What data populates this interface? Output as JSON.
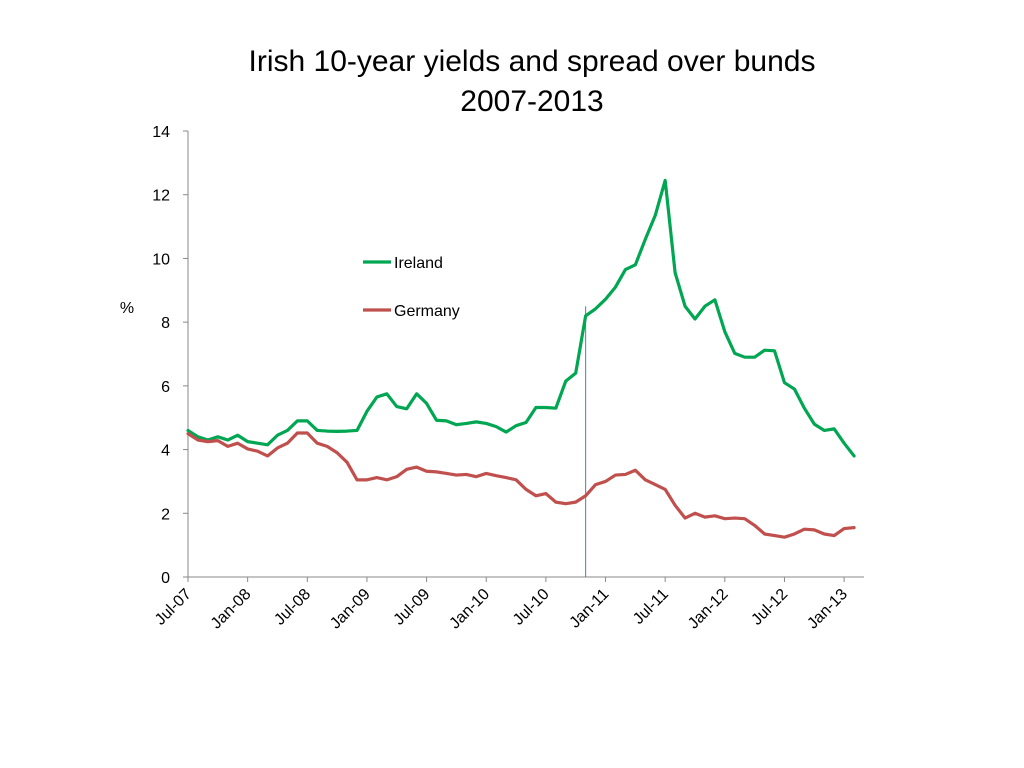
{
  "chart_data": {
    "type": "line",
    "title": "Irish 10-year yields and spread over bunds",
    "subtitle": "2007-2013",
    "ylabel": "%",
    "xlabel": "",
    "ylim": [
      0,
      14
    ],
    "y_ticks": [
      0,
      2,
      4,
      6,
      8,
      10,
      12,
      14
    ],
    "x_ticks": [
      "Jul-07",
      "Jan-08",
      "Jul-08",
      "Jan-09",
      "Jul-09",
      "Jan-10",
      "Jul-10",
      "Jan-11",
      "Jul-11",
      "Jan-12",
      "Jul-12",
      "Jan-13"
    ],
    "x_start": "Jul-07",
    "x_end": "Mar-13",
    "legend_position": "upper-middle",
    "grid": false,
    "marker_line": {
      "x": "Nov-10",
      "y_from": 0,
      "y_to": 8.5,
      "color": "#4a7ebb"
    },
    "series": [
      {
        "name": "Ireland",
        "color": "#00a651",
        "values": [
          4.6,
          4.4,
          4.3,
          4.4,
          4.3,
          4.45,
          4.25,
          4.2,
          4.15,
          4.45,
          4.6,
          4.9,
          4.9,
          4.6,
          4.58,
          4.57,
          4.58,
          4.6,
          5.2,
          5.65,
          5.75,
          5.35,
          5.28,
          5.75,
          5.45,
          4.92,
          4.9,
          4.78,
          4.82,
          4.87,
          4.82,
          4.72,
          4.55,
          4.75,
          4.85,
          5.32,
          5.32,
          5.3,
          6.15,
          6.4,
          8.2,
          8.42,
          8.72,
          9.1,
          9.65,
          9.8,
          10.6,
          11.35,
          12.45,
          9.55,
          8.5,
          8.1,
          8.5,
          8.7,
          7.7,
          7.02,
          6.9,
          6.9,
          7.12,
          7.1,
          6.1,
          5.9,
          5.3,
          4.8,
          4.6,
          4.65,
          4.2,
          3.8
        ]
      },
      {
        "name": "Germany",
        "color": "#c0504d",
        "values": [
          4.5,
          4.3,
          4.25,
          4.28,
          4.1,
          4.2,
          4.02,
          3.95,
          3.8,
          4.05,
          4.2,
          4.52,
          4.52,
          4.2,
          4.1,
          3.9,
          3.6,
          3.05,
          3.05,
          3.12,
          3.05,
          3.15,
          3.38,
          3.45,
          3.32,
          3.3,
          3.25,
          3.2,
          3.22,
          3.15,
          3.25,
          3.18,
          3.12,
          3.05,
          2.75,
          2.55,
          2.62,
          2.35,
          2.3,
          2.35,
          2.55,
          2.9,
          3.0,
          3.2,
          3.22,
          3.35,
          3.05,
          2.9,
          2.75,
          2.25,
          1.85,
          2.0,
          1.88,
          1.92,
          1.83,
          1.85,
          1.83,
          1.62,
          1.35,
          1.3,
          1.25,
          1.35,
          1.5,
          1.48,
          1.35,
          1.3,
          1.52,
          1.55
        ]
      }
    ]
  }
}
